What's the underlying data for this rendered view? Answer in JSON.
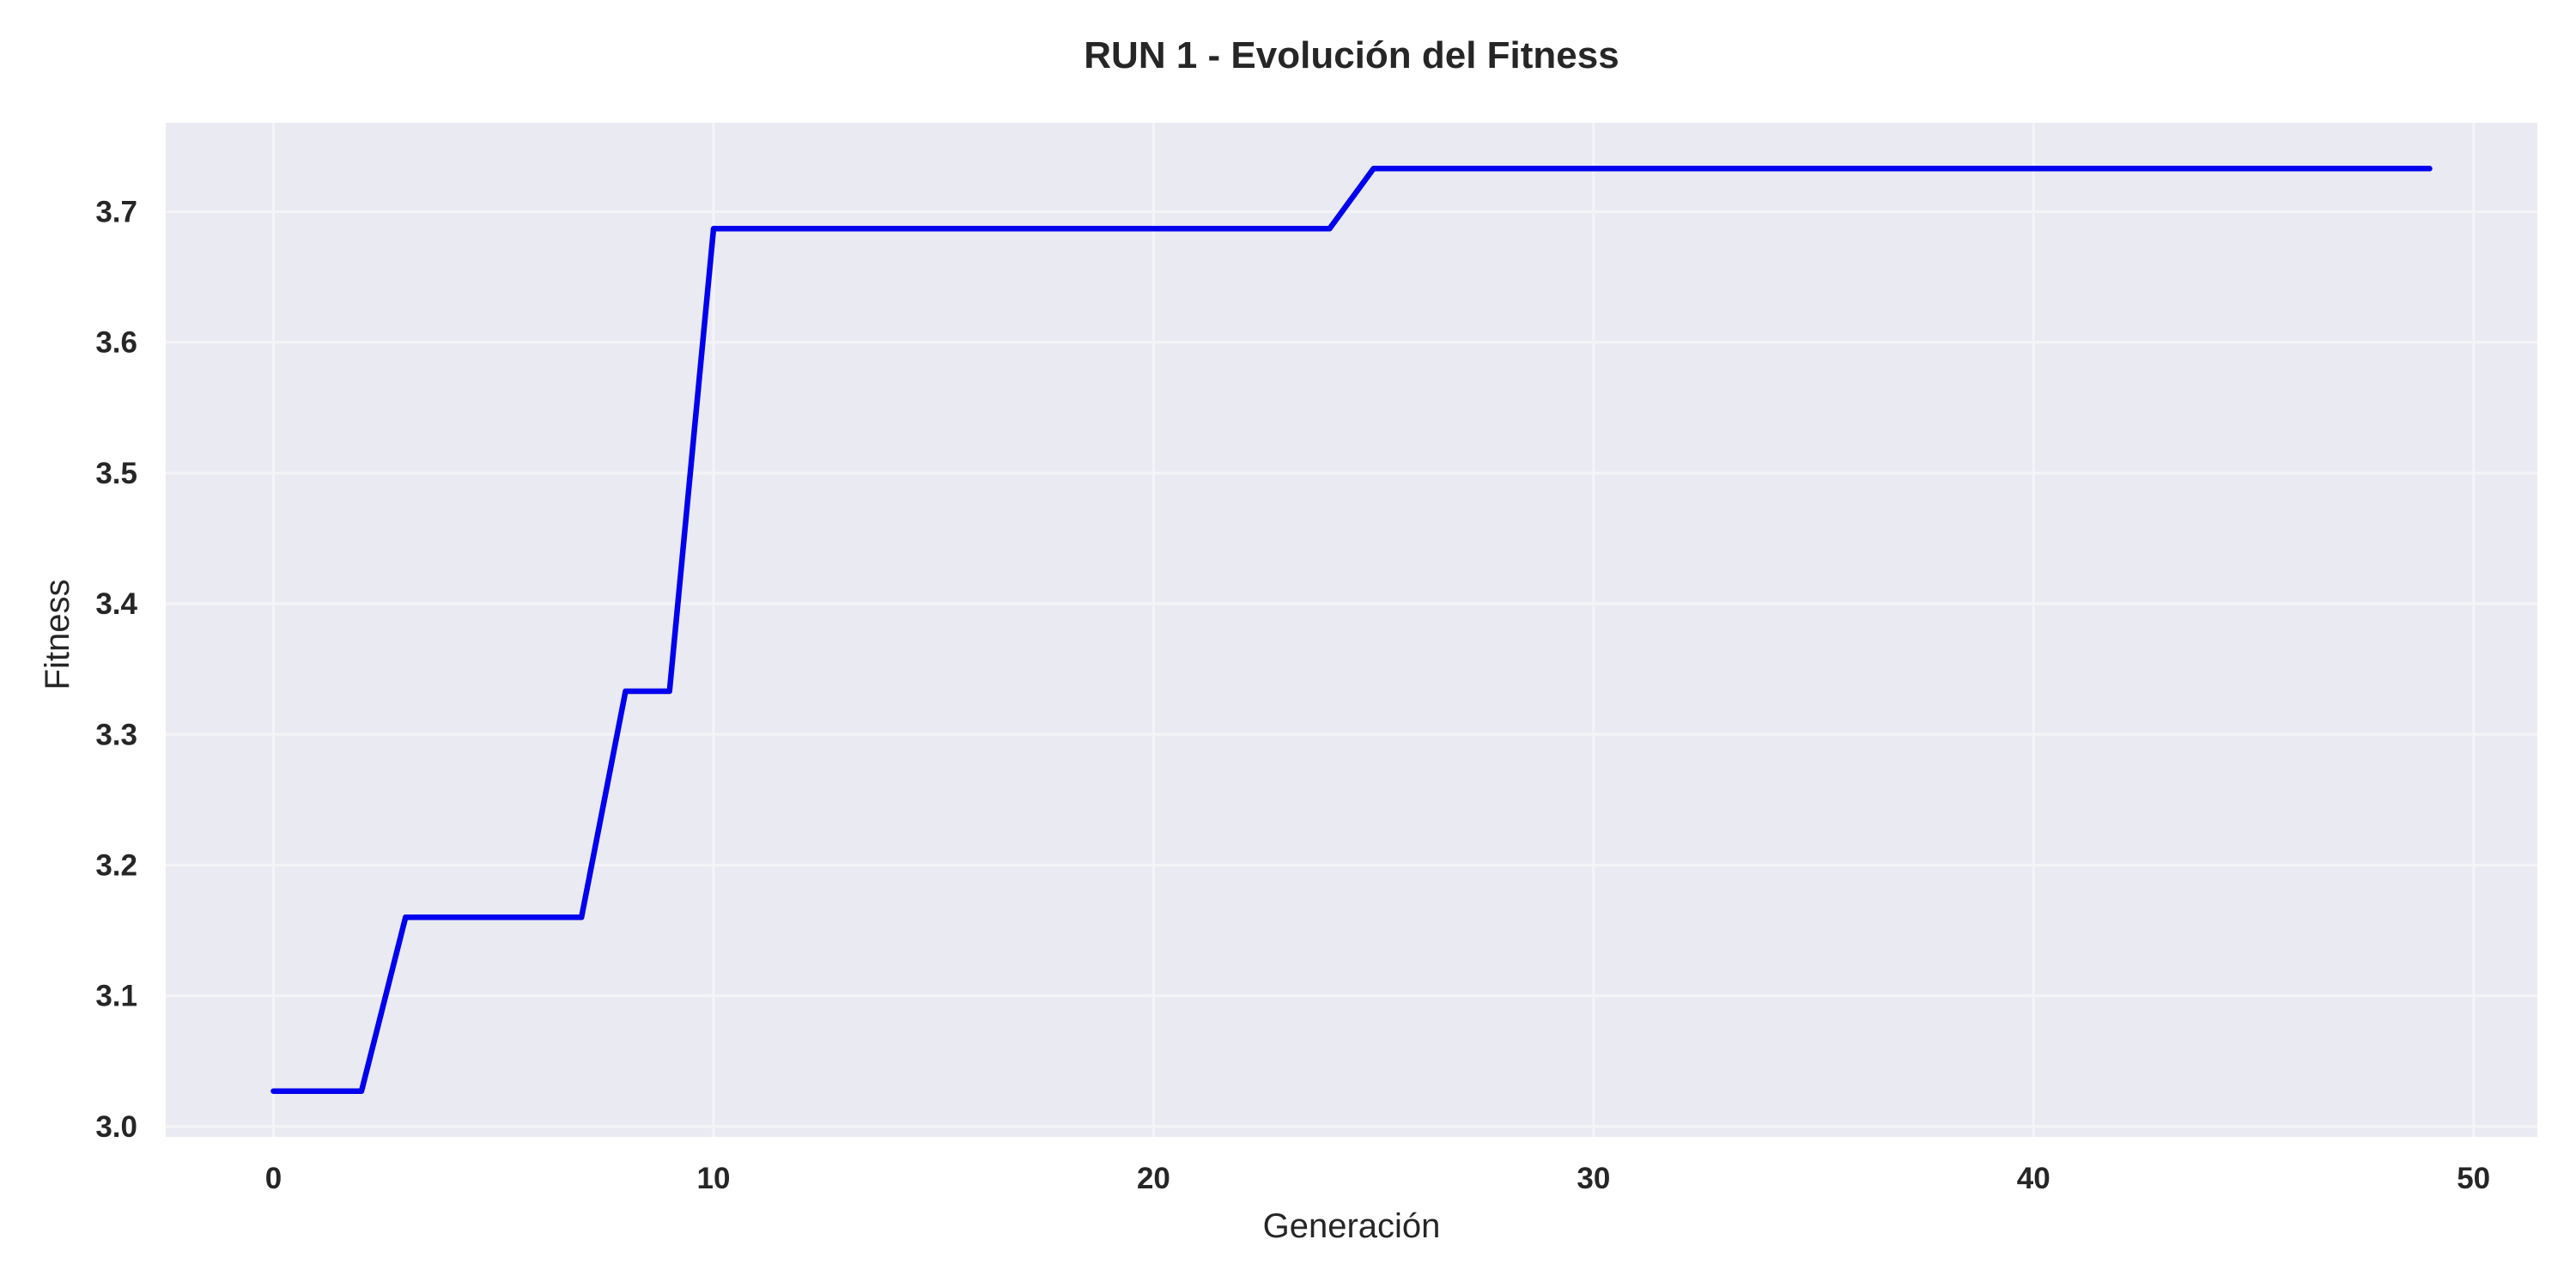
{
  "colors": {
    "plot_background": "#eaeaf2",
    "grid": "#f4f4f8",
    "line": "#0000ee",
    "text": "#262626"
  },
  "chart_data": {
    "type": "line",
    "title": "RUN 1 - Evolución del Fitness",
    "xlabel": "Generación",
    "ylabel": "Fitness",
    "xlim": [
      -2.45,
      51.45
    ],
    "ylim": [
      2.992,
      3.768
    ],
    "xticks": [
      0,
      10,
      20,
      30,
      40,
      50
    ],
    "xtick_labels": [
      "0",
      "10",
      "20",
      "30",
      "40",
      "50"
    ],
    "yticks": [
      3.0,
      3.1,
      3.2,
      3.3,
      3.4,
      3.5,
      3.6,
      3.7
    ],
    "ytick_labels": [
      "3.0",
      "3.1",
      "3.2",
      "3.3",
      "3.4",
      "3.5",
      "3.6",
      "3.7"
    ],
    "grid": true,
    "legend": "none",
    "series": [
      {
        "x": [
          0,
          1,
          2,
          3,
          4,
          5,
          6,
          7,
          8,
          9,
          10,
          11,
          12,
          13,
          14,
          15,
          16,
          17,
          18,
          19,
          20,
          21,
          22,
          23,
          24,
          25,
          26,
          27,
          28,
          29,
          30,
          31,
          32,
          33,
          34,
          35,
          36,
          37,
          38,
          39,
          40,
          41,
          42,
          43,
          44,
          45,
          46,
          47,
          48,
          49
        ],
        "values": [
          3.027,
          3.027,
          3.027,
          3.16,
          3.16,
          3.16,
          3.16,
          3.16,
          3.333,
          3.333,
          3.687,
          3.687,
          3.687,
          3.687,
          3.687,
          3.687,
          3.687,
          3.687,
          3.687,
          3.687,
          3.687,
          3.687,
          3.687,
          3.687,
          3.687,
          3.733,
          3.733,
          3.733,
          3.733,
          3.733,
          3.733,
          3.733,
          3.733,
          3.733,
          3.733,
          3.733,
          3.733,
          3.733,
          3.733,
          3.733,
          3.733,
          3.733,
          3.733,
          3.733,
          3.733,
          3.733,
          3.733,
          3.733,
          3.733,
          3.733
        ]
      }
    ]
  }
}
